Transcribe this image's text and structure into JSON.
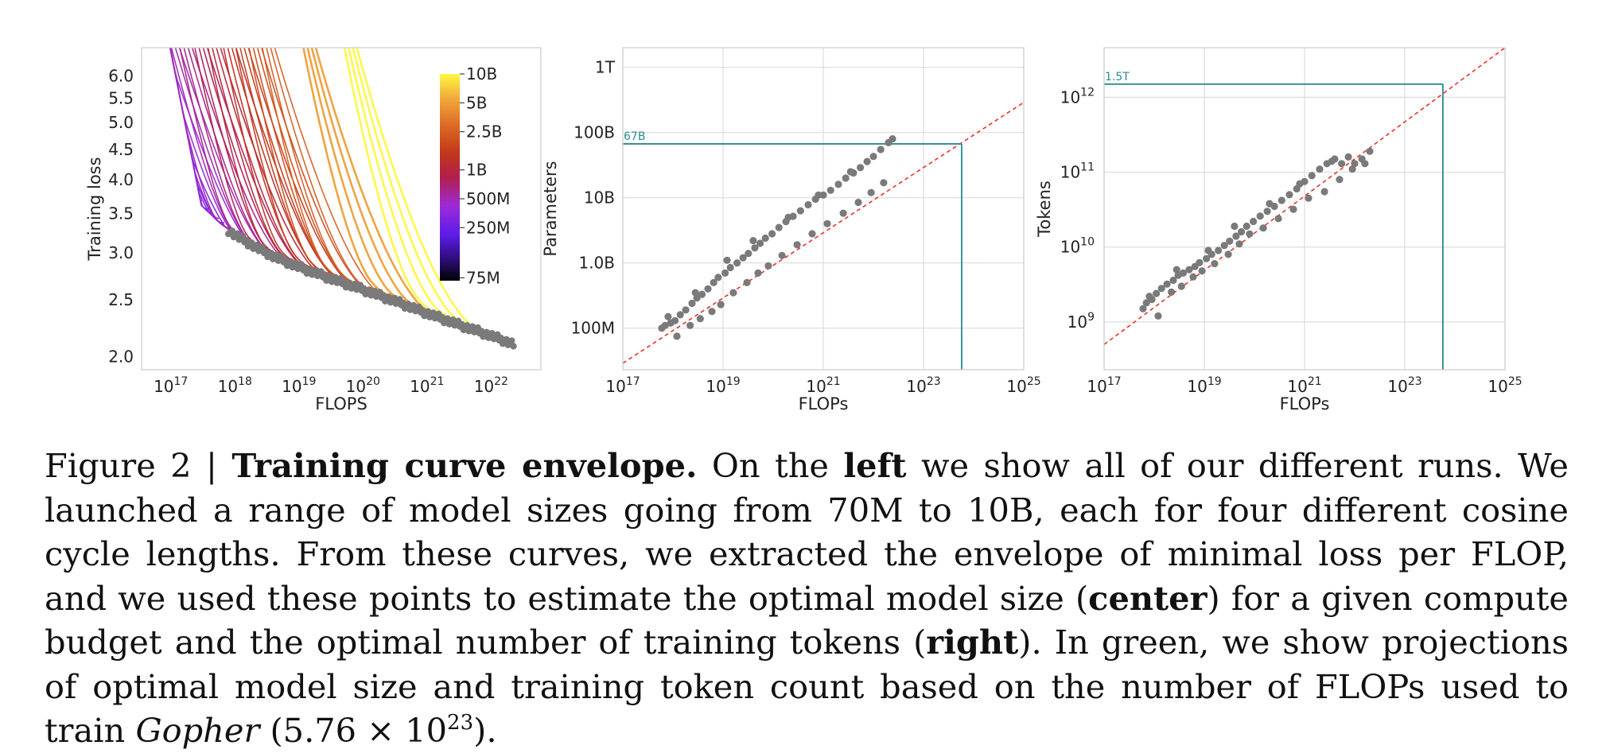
{
  "figure": {
    "chart_data": [
      {
        "type": "line",
        "panel": "left",
        "xlabel": "FLOPS",
        "ylabel": "Training loss",
        "xscale": "log",
        "yscale": "log",
        "xlim": [
          3.5e+16,
          6e+22
        ],
        "ylim": [
          1.9,
          6.7
        ],
        "xticks": [
          1e+17,
          1e+18,
          1e+19,
          1e+20,
          1e+21,
          1e+22
        ],
        "xtick_labels": [
          {
            "base": "10",
            "exp": "17"
          },
          {
            "base": "10",
            "exp": "18"
          },
          {
            "base": "10",
            "exp": "19"
          },
          {
            "base": "10",
            "exp": "20"
          },
          {
            "base": "10",
            "exp": "21"
          },
          {
            "base": "10",
            "exp": "22"
          }
        ],
        "yticks": [
          2.0,
          2.5,
          3.0,
          3.5,
          4.0,
          4.5,
          5.0,
          5.5,
          6.0
        ],
        "ytick_labels": [
          "2.0",
          "2.5",
          "3.0",
          "3.5",
          "4.0",
          "4.5",
          "5.0",
          "5.5",
          "6.0"
        ],
        "colorbar": {
          "ticks": [
            75000000,
            250000000,
            500000000,
            1000000000,
            2500000000,
            5000000000,
            10000000000
          ],
          "labels": [
            "75M",
            "250M",
            "500M",
            "1B",
            "2.5B",
            "5B",
            "10B"
          ],
          "range": [
            70000000,
            10000000000
          ]
        },
        "model_sizes": [
          75000000,
          100000000,
          130000000,
          160000000,
          200000000,
          250000000,
          310000000,
          400000000,
          500000000,
          620000000,
          800000000,
          1000000000,
          1300000000,
          1600000000,
          2000000000,
          2500000000,
          5000000000,
          10000000000
        ],
        "envelope_x": [
          3e+17,
          6e+17,
          1e+18,
          2e+18,
          4e+18,
          1e+19,
          3e+19,
          1e+20,
          3e+20,
          1e+21,
          3e+21,
          1e+22,
          2e+22
        ],
        "envelope_y": [
          3.6,
          3.35,
          3.22,
          3.08,
          2.96,
          2.84,
          2.72,
          2.6,
          2.49,
          2.37,
          2.27,
          2.17,
          2.11
        ]
      },
      {
        "type": "scatter",
        "panel": "center",
        "xlabel": "FLOPs",
        "ylabel": "Parameters",
        "xscale": "log",
        "yscale": "log",
        "xlim": [
          1e+17,
          1e+25
        ],
        "ylim": [
          23000000.0,
          2000000000000.0
        ],
        "xticks": [
          1e+17,
          1e+19,
          1e+21,
          1e+23,
          1e+25
        ],
        "xtick_labels": [
          {
            "base": "10",
            "exp": "17"
          },
          {
            "base": "10",
            "exp": "19"
          },
          {
            "base": "10",
            "exp": "21"
          },
          {
            "base": "10",
            "exp": "23"
          },
          {
            "base": "10",
            "exp": "25"
          }
        ],
        "yticks": [
          100000000.0,
          1000000000.0,
          10000000000.0,
          100000000000.0,
          1000000000000.0
        ],
        "ytick_labels": [
          "100M",
          "1.0B",
          "10B",
          "100B",
          "1T"
        ],
        "fit": {
          "points": [
            [
              1e+17,
              29000000.0
            ],
            [
              1e+25,
              290000000000.0
            ]
          ]
        },
        "projection": {
          "x": 5.76e+23,
          "y": 67000000000.0,
          "label": "67B"
        },
        "scatter_x": [
          6e+17,
          7e+17,
          9e+17,
          1.1e+18,
          1.4e+18,
          1.8e+18,
          2.4e+18,
          3e+18,
          3.8e+18,
          5e+18,
          6.5e+18,
          8e+18,
          1.1e+19,
          1.4e+19,
          1.9e+19,
          2.5e+19,
          3.2e+19,
          4.3e+19,
          5.5e+19,
          7e+19,
          9.5e+19,
          1.3e+20,
          1.8e+20,
          2.5e+20,
          3.5e+20,
          5e+20,
          7e+20,
          1e+21,
          1.4e+21,
          2e+21,
          2.8e+21,
          4e+21,
          5.5e+21,
          7.5e+21,
          1e+22,
          1.4e+22,
          2e+22,
          2.4e+22,
          1.2e+18,
          2.2e+18,
          3.5e+18,
          6e+18,
          9e+18,
          1.6e+19,
          3e+19,
          5e+19,
          8e+19,
          1.5e+20,
          3e+20,
          6e+20,
          1.2e+21,
          2.5e+21,
          5e+21,
          9e+21,
          1.6e+22,
          8e+17,
          2.8e+18,
          1.2e+19,
          4e+19,
          2e+20,
          8e+20,
          3.5e+21
        ],
        "scatter_y": [
          100000000.0,
          110000000.0,
          120000000.0,
          130000000.0,
          160000000.0,
          190000000.0,
          240000000.0,
          290000000.0,
          330000000.0,
          400000000.0,
          500000000.0,
          600000000.0,
          700000000.0,
          850000000.0,
          1000000000.0,
          1200000000.0,
          1400000000.0,
          1700000000.0,
          2000000000.0,
          2400000000.0,
          2800000000.0,
          3500000000.0,
          4300000000.0,
          5200000000.0,
          6300000000.0,
          7800000000.0,
          9500000000.0,
          11000000000.0,
          13000000000.0,
          16000000000.0,
          20000000000.0,
          24000000000.0,
          29000000000.0,
          36000000000.0,
          43000000000.0,
          55000000000.0,
          70000000000.0,
          80000000000.0,
          75000000.0,
          110000000.0,
          140000000.0,
          180000000.0,
          230000000.0,
          350000000.0,
          500000000.0,
          700000000.0,
          900000000.0,
          1300000000.0,
          1900000000.0,
          2800000000.0,
          4000000000.0,
          5800000000.0,
          8500000000.0,
          12000000000.0,
          17000000000.0,
          150000000.0,
          350000000.0,
          1100000000.0,
          2200000000.0,
          5000000000.0,
          11000000000.0,
          25000000000.0
        ]
      },
      {
        "type": "scatter",
        "panel": "right",
        "xlabel": "FLOPs",
        "ylabel": "Tokens",
        "xscale": "log",
        "yscale": "log",
        "xlim": [
          1e+17,
          1e+25
        ],
        "ylim": [
          230000000.0,
          4600000000000.0
        ],
        "xticks": [
          1e+17,
          1e+19,
          1e+21,
          1e+23,
          1e+25
        ],
        "xtick_labels": [
          {
            "base": "10",
            "exp": "17"
          },
          {
            "base": "10",
            "exp": "19"
          },
          {
            "base": "10",
            "exp": "21"
          },
          {
            "base": "10",
            "exp": "23"
          },
          {
            "base": "10",
            "exp": "25"
          }
        ],
        "yticks": [
          1000000000.0,
          10000000000.0,
          100000000000.0,
          1000000000000.0
        ],
        "ytick_labels": [
          {
            "base": "10",
            "exp": "9"
          },
          {
            "base": "10",
            "exp": "10"
          },
          {
            "base": "10",
            "exp": "11"
          },
          {
            "base": "10",
            "exp": "12"
          }
        ],
        "fit": {
          "points": [
            [
              1e+17,
              500000000.0
            ],
            [
              1e+25,
              4600000000000.0
            ]
          ]
        },
        "projection": {
          "x": 5.76e+23,
          "y": 1500000000000.0,
          "label": "1.5T"
        },
        "scatter_x": [
          6e+17,
          7e+17,
          9e+17,
          1.1e+18,
          1.4e+18,
          1.8e+18,
          2.4e+18,
          3e+18,
          3.8e+18,
          5e+18,
          6.5e+18,
          8e+18,
          1.1e+19,
          1.4e+19,
          1.9e+19,
          2.5e+19,
          3.2e+19,
          4.3e+19,
          5.5e+19,
          7e+19,
          9.5e+19,
          1.3e+20,
          1.8e+20,
          2.5e+20,
          3.5e+20,
          5e+20,
          7e+20,
          1e+21,
          1.4e+21,
          2e+21,
          2.8e+21,
          4e+21,
          5.5e+21,
          7.5e+21,
          1e+22,
          1.4e+22,
          2e+22,
          1.2e+18,
          2.2e+18,
          3.5e+18,
          6e+18,
          9e+18,
          1.6e+19,
          3e+19,
          5e+19,
          8e+19,
          1.5e+20,
          3e+20,
          6e+20,
          1.2e+21,
          2.5e+21,
          5e+21,
          9e+21,
          1.6e+22,
          8e+17,
          2.8e+18,
          1.2e+19,
          4e+19,
          2e+20,
          8e+20,
          3.5e+21
        ],
        "scatter_y": [
          1500000000.0,
          1800000000.0,
          2000000000.0,
          2400000000.0,
          2800000000.0,
          3200000000.0,
          3600000000.0,
          4200000000.0,
          4500000000.0,
          5000000000.0,
          5500000000.0,
          6200000000.0,
          7000000000.0,
          8000000000.0,
          9000000000.0,
          10500000000.0,
          12000000000.0,
          14000000000.0,
          16000000000.0,
          19000000000.0,
          22000000000.0,
          26000000000.0,
          30000000000.0,
          35000000000.0,
          42000000000.0,
          50000000000.0,
          60000000000.0,
          75000000000.0,
          90000000000.0,
          110000000000.0,
          130000000000.0,
          150000000000.0,
          130000000000.0,
          160000000000.0,
          130000000000.0,
          150000000000.0,
          190000000000.0,
          1200000000.0,
          2500000000.0,
          3000000000.0,
          4000000000.0,
          4800000000.0,
          6000000000.0,
          8000000000.0,
          11000000000.0,
          15000000000.0,
          18000000000.0,
          24000000000.0,
          32000000000.0,
          45000000000.0,
          55000000000.0,
          80000000000.0,
          110000000000.0,
          130000000000.0,
          2200000000.0,
          5000000000.0,
          9000000000.0,
          19000000000.0,
          38000000000.0,
          70000000000.0,
          140000000000.0
        ]
      }
    ],
    "colors": {
      "scatter": "#7a7a7a",
      "fit_line": "#e8332a",
      "projection": "#2a8a8f",
      "grid": "#dddddd",
      "spine": "#cccccc"
    }
  },
  "caption": {
    "label": "Figure 2 | ",
    "title": "Training curve envelope.",
    "t1": " On the ",
    "b1": "left",
    "t2": " we show all of our different runs. We launched a range of model sizes going from 70M to 10B, each for four different cosine cycle lengths. From these curves, we extracted the envelope of minimal loss per FLOP, and we used these points to estimate the optimal model size (",
    "b2": "center",
    "t3": ") for a given compute budget and the optimal number of training tokens (",
    "b3": "right",
    "t4": "). In green, we show projections of optimal model size and training token count based on the number of FLOPs used to train ",
    "model": "Gopher",
    "t5": " (5.76 × 10",
    "exp": "23",
    "t6": ")."
  }
}
